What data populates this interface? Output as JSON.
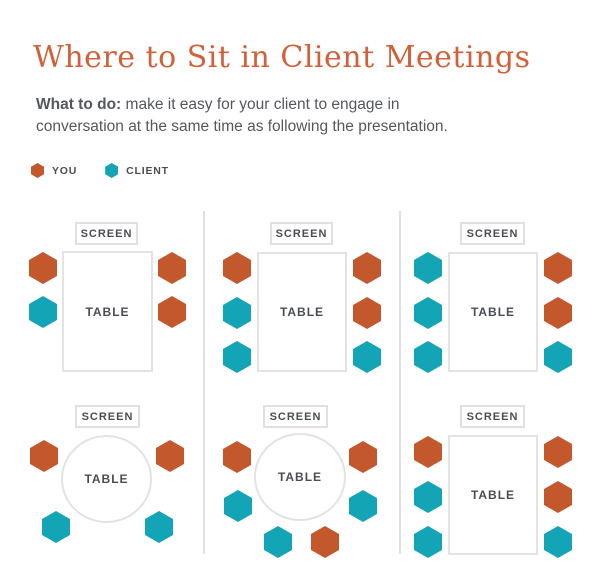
{
  "header": {
    "title": "Where to Sit in Client Meetings",
    "intro_bold": "What to do:",
    "intro_rest": " make it easy for your client to engage in conversation at the same time as following the presentation."
  },
  "legend": {
    "items": [
      {
        "role": "you",
        "label": "YOU"
      },
      {
        "role": "client",
        "label": "CLIENT"
      }
    ]
  },
  "labels": {
    "screen": "SCREEN",
    "table": "TABLE"
  },
  "colors": {
    "you": "#C2582C",
    "client": "#13A5B5",
    "title": "#D2613A",
    "text": "#54585E",
    "label": "#4A4E54",
    "border": "#E0E0E0"
  },
  "panels": [
    {
      "name": "rect-table-top-left",
      "table_shape": "rectangle",
      "seats": [
        {
          "position": "left-top",
          "role": "you"
        },
        {
          "position": "left-bottom",
          "role": "client"
        },
        {
          "position": "right-top",
          "role": "you"
        },
        {
          "position": "right-bottom",
          "role": "you"
        }
      ]
    },
    {
      "name": "rect-table-top-middle",
      "table_shape": "rectangle",
      "seats": [
        {
          "position": "left-top",
          "role": "you"
        },
        {
          "position": "left-middle",
          "role": "client"
        },
        {
          "position": "left-bottom",
          "role": "client"
        },
        {
          "position": "right-top",
          "role": "you"
        },
        {
          "position": "right-middle",
          "role": "you"
        },
        {
          "position": "right-bottom",
          "role": "client"
        }
      ]
    },
    {
      "name": "rect-table-top-right",
      "table_shape": "rectangle",
      "seats": [
        {
          "position": "left-top",
          "role": "client"
        },
        {
          "position": "left-middle",
          "role": "client"
        },
        {
          "position": "left-bottom",
          "role": "client"
        },
        {
          "position": "right-top",
          "role": "you"
        },
        {
          "position": "right-middle",
          "role": "you"
        },
        {
          "position": "right-bottom",
          "role": "client"
        }
      ]
    },
    {
      "name": "round-table-bottom-left",
      "table_shape": "circle",
      "seats": [
        {
          "position": "upper-left",
          "role": "you"
        },
        {
          "position": "upper-right",
          "role": "you"
        },
        {
          "position": "lower-left",
          "role": "client"
        },
        {
          "position": "lower-right",
          "role": "client"
        }
      ]
    },
    {
      "name": "round-table-bottom-middle",
      "table_shape": "circle",
      "seats": [
        {
          "position": "upper-left",
          "role": "you"
        },
        {
          "position": "upper-right",
          "role": "you"
        },
        {
          "position": "mid-left",
          "role": "client"
        },
        {
          "position": "mid-right",
          "role": "client"
        },
        {
          "position": "bottom-left",
          "role": "client"
        },
        {
          "position": "bottom-right",
          "role": "you"
        }
      ]
    },
    {
      "name": "rect-table-bottom-right",
      "table_shape": "rectangle",
      "seats": [
        {
          "position": "left-top",
          "role": "you"
        },
        {
          "position": "left-middle",
          "role": "client"
        },
        {
          "position": "left-bottom",
          "role": "client"
        },
        {
          "position": "right-top",
          "role": "you"
        },
        {
          "position": "right-middle",
          "role": "you"
        },
        {
          "position": "right-bottom",
          "role": "client"
        }
      ]
    }
  ]
}
